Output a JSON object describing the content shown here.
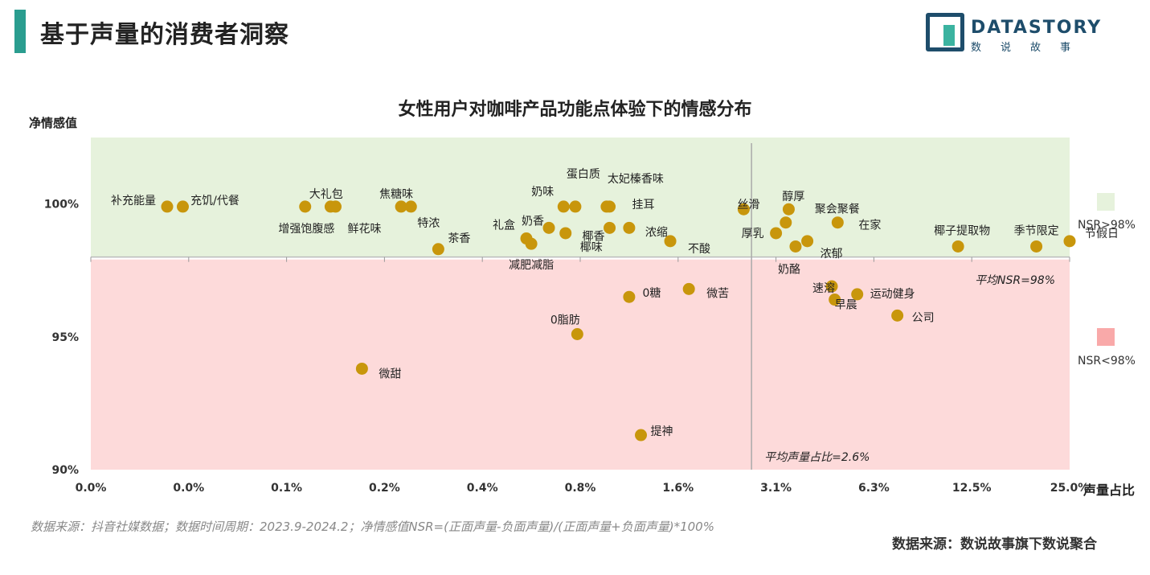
{
  "page_title": "基于声量的消费者洞察",
  "logo": {
    "text": "DATASTORY",
    "sub": "数说故事"
  },
  "legend": [
    {
      "label": "NSR>98%",
      "color": "#e6f2dc"
    },
    {
      "label": "NSR<98%",
      "color": "#f9a9a9"
    }
  ],
  "footnote": "数据来源：抖音社媒数据；数据时间周期：2023.9-2024.2；净情感值NSR=(正面声量-负面声量)/(正面声量+负面声量)*100%",
  "source": "数据来源：数说故事旗下数说聚合",
  "chart_data": {
    "type": "scatter",
    "title": "女性用户对咖啡产品功能点体验下的情感分布",
    "ylabel": "净情感值",
    "xlabel": "声量占比",
    "x_tick_labels": [
      "0.0%",
      "0.0%",
      "0.1%",
      "0.2%",
      "0.4%",
      "0.8%",
      "1.6%",
      "3.1%",
      "6.3%",
      "12.5%",
      "25.0%"
    ],
    "x_scale": "log2 (tick index 0-10)",
    "y_tick_labels": [
      "90%",
      "95%",
      "100%"
    ],
    "ylim": [
      90,
      102.5
    ],
    "avg_nsr": 98,
    "avg_nsr_label": "平均NSR=98%",
    "avg_share_label": "平均声量占比=2.6%",
    "avg_share_tick_pos": 6.75,
    "point_color": "#c8960c",
    "points": [
      {
        "name": "补充能量",
        "x": 0.78,
        "y": 99.9
      },
      {
        "name": "充饥/代餐",
        "x": 0.94,
        "y": 99.9
      },
      {
        "name": "大礼包",
        "x": 2.19,
        "y": 99.9
      },
      {
        "name": "增强饱腹感",
        "x": 2.45,
        "y": 99.9
      },
      {
        "name": "鲜花味",
        "x": 2.5,
        "y": 99.9
      },
      {
        "name": "焦糖味",
        "x": 3.17,
        "y": 99.9
      },
      {
        "name": "特浓",
        "x": 3.27,
        "y": 99.9
      },
      {
        "name": "茶香",
        "x": 3.55,
        "y": 98.3
      },
      {
        "name": "礼盒",
        "x": 4.45,
        "y": 98.7
      },
      {
        "name": "减肥减脂",
        "x": 4.5,
        "y": 98.5
      },
      {
        "name": "奶香",
        "x": 4.68,
        "y": 99.1
      },
      {
        "name": "奶味",
        "x": 4.83,
        "y": 99.9
      },
      {
        "name": "蛋白质",
        "x": 4.95,
        "y": 99.9
      },
      {
        "name": "椰味",
        "x": 4.85,
        "y": 98.9
      },
      {
        "name": "太妃榛香味",
        "x": 5.27,
        "y": 99.9
      },
      {
        "name": "挂耳",
        "x": 5.3,
        "y": 99.9
      },
      {
        "name": "椰香",
        "x": 5.3,
        "y": 99.1
      },
      {
        "name": "浓缩",
        "x": 5.5,
        "y": 99.1
      },
      {
        "name": "不酸",
        "x": 5.92,
        "y": 98.6
      },
      {
        "name": "0糖",
        "x": 5.5,
        "y": 96.5
      },
      {
        "name": "0脂肪",
        "x": 4.97,
        "y": 95.1
      },
      {
        "name": "微苦",
        "x": 6.11,
        "y": 96.8
      },
      {
        "name": "提神",
        "x": 5.62,
        "y": 91.3
      },
      {
        "name": "微甜",
        "x": 2.77,
        "y": 93.8
      },
      {
        "name": "丝滑",
        "x": 6.67,
        "y": 99.8
      },
      {
        "name": "醇厚",
        "x": 7.13,
        "y": 99.8
      },
      {
        "name": "聚会聚餐",
        "x": 7.1,
        "y": 99.3
      },
      {
        "name": "厚乳",
        "x": 7.0,
        "y": 98.9
      },
      {
        "name": "浓郁",
        "x": 7.32,
        "y": 98.6
      },
      {
        "name": "奶酪",
        "x": 7.2,
        "y": 98.4
      },
      {
        "name": "在家",
        "x": 7.63,
        "y": 99.3
      },
      {
        "name": "速溶",
        "x": 7.57,
        "y": 96.9
      },
      {
        "name": "早晨",
        "x": 7.6,
        "y": 96.4
      },
      {
        "name": "运动健身",
        "x": 7.83,
        "y": 96.6
      },
      {
        "name": "公司",
        "x": 8.24,
        "y": 95.8
      },
      {
        "name": "椰子提取物",
        "x": 8.86,
        "y": 98.4
      },
      {
        "name": "季节限定",
        "x": 9.66,
        "y": 98.4
      },
      {
        "name": "节假日",
        "x": 10.0,
        "y": 98.6
      }
    ]
  }
}
